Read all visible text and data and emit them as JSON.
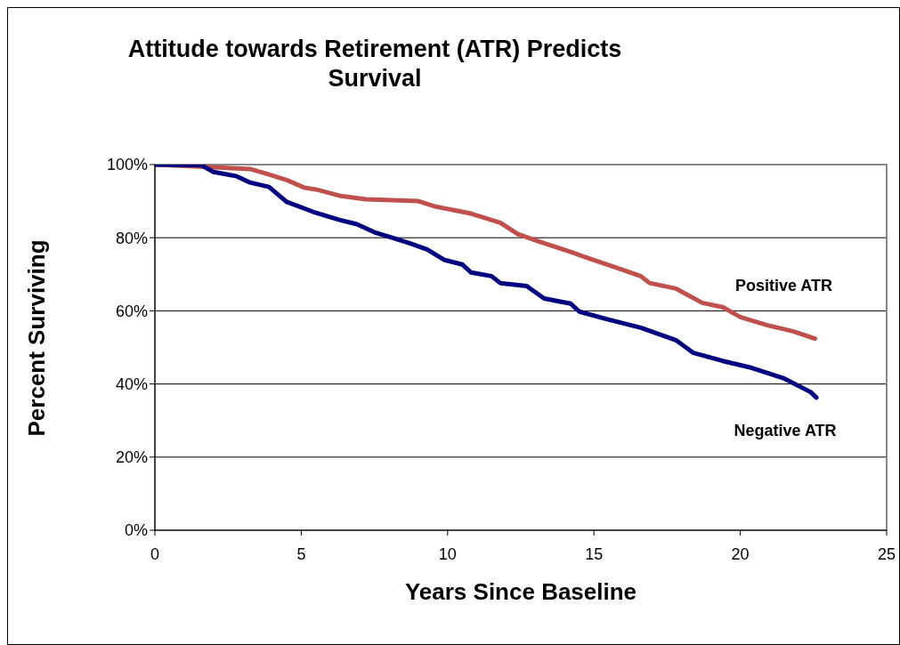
{
  "chart_data": {
    "type": "line",
    "title": "Attitude towards Retirement (ATR) Predicts Survival",
    "xlabel": "Years Since Baseline",
    "ylabel": "Percent Surviving",
    "xlim": [
      0,
      25
    ],
    "xticks": [
      0,
      5,
      10,
      15,
      20,
      25
    ],
    "ylim": [
      0,
      100
    ],
    "yticks": [
      {
        "value": 0,
        "label": "0%"
      },
      {
        "value": 20,
        "label": "20%"
      },
      {
        "value": 40,
        "label": "40%"
      },
      {
        "value": 60,
        "label": "60%"
      },
      {
        "value": 80,
        "label": "80%"
      },
      {
        "value": 100,
        "label": "100%"
      }
    ],
    "grid": "y",
    "legend": false,
    "marker": "none",
    "line_style": "solid",
    "series": [
      {
        "name": "Positive ATR",
        "color": "#c0504d",
        "x": [
          0,
          3.25,
          3.9,
          4.5,
          5.1,
          5.5,
          6.3,
          7.2,
          9.0,
          9.6,
          10.8,
          11.8,
          12.4,
          13.0,
          14.2,
          14.8,
          15.7,
          16.6,
          16.9,
          17.8,
          18.7,
          19.4,
          20.0,
          20.9,
          21.8,
          22.55
        ],
        "values": [
          100,
          98.8,
          97.3,
          95.8,
          93.7,
          93.2,
          91.5,
          90.5,
          90,
          88.5,
          86.6,
          84.1,
          81,
          79.3,
          76.1,
          74.4,
          72,
          69.5,
          67.6,
          66.1,
          62.2,
          61,
          58.3,
          56.1,
          54.4,
          52.4
        ]
      },
      {
        "name": "Negative ATR",
        "color": "#000080",
        "x": [
          0,
          1.6,
          2.0,
          2.8,
          3.25,
          3.9,
          4.5,
          5.4,
          6.3,
          6.9,
          7.5,
          8.1,
          8.7,
          9.3,
          9.9,
          10.5,
          10.8,
          11.5,
          11.8,
          12.7,
          13.3,
          14.2,
          14.5,
          15.4,
          16.6,
          17.8,
          18.4,
          19.4,
          20.3,
          21.5,
          22.4,
          22.6
        ],
        "values": [
          100,
          99.8,
          98,
          96.8,
          95.1,
          93.9,
          89.8,
          87.1,
          84.9,
          83.7,
          81.5,
          80,
          78.5,
          76.8,
          73.9,
          72.7,
          70.5,
          69.5,
          67.6,
          66.8,
          63.4,
          62,
          59.8,
          57.8,
          55.4,
          52,
          48.5,
          46.3,
          44.6,
          41.5,
          37.8,
          36.3
        ]
      }
    ]
  }
}
